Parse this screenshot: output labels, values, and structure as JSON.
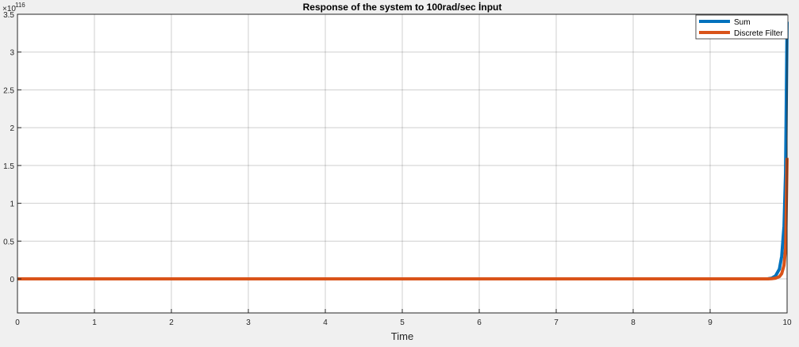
{
  "chart_data": {
    "type": "line",
    "title": "Response of the system to 100rad/sec İnput",
    "xlabel": "Time",
    "ylabel": "",
    "exponent_label": "×10",
    "exponent_power": "116",
    "xlim": [
      0,
      10
    ],
    "ylim": [
      -0.45,
      3.5
    ],
    "xticks": [
      "0",
      "1",
      "2",
      "3",
      "4",
      "5",
      "6",
      "7",
      "8",
      "9",
      "10"
    ],
    "yticks": [
      "0",
      "0.5",
      "1",
      "1.5",
      "2",
      "2.5",
      "3",
      "3.5"
    ],
    "grid": true,
    "legend_position": "top-right",
    "series": [
      {
        "name": "Sum",
        "color": "#0072BD",
        "x": [
          0,
          9.7,
          9.75,
          9.8,
          9.85,
          9.9,
          9.93,
          9.96,
          9.98,
          10.0
        ],
        "y": [
          0,
          0,
          0.002,
          0.01,
          0.04,
          0.13,
          0.3,
          0.7,
          1.4,
          3.4
        ]
      },
      {
        "name": "Discrete Filter",
        "color": "#D95319",
        "x": [
          0,
          9.75,
          9.8,
          9.85,
          9.9,
          9.93,
          9.96,
          9.98,
          10.0
        ],
        "y": [
          0,
          0,
          0.003,
          0.01,
          0.03,
          0.07,
          0.18,
          0.4,
          1.6
        ]
      }
    ]
  }
}
